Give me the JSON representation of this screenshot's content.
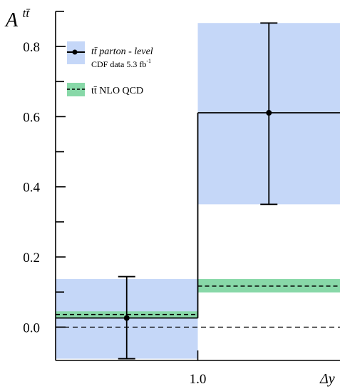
{
  "chart_data": {
    "type": "step",
    "ylabel": {
      "base": "A",
      "sup": "tt̄"
    },
    "xlabel": "Δy",
    "ylim": [
      -0.095,
      0.9
    ],
    "xlim": [
      0.0,
      2.0
    ],
    "x_ticks": [
      {
        "value": 1.0,
        "label": "1.0"
      }
    ],
    "y_ticks": [
      {
        "value": 0.8,
        "label": "0.8"
      },
      {
        "value": 0.6,
        "label": "0.6"
      },
      {
        "value": 0.4,
        "label": "0.4"
      },
      {
        "value": 0.2,
        "label": "0.2"
      },
      {
        "value": 0.0,
        "label": "0.0"
      }
    ],
    "y_minor_step": 0.1,
    "zero_line": true,
    "legend_position": "top-left",
    "series": [
      {
        "name": "tt̄ parton - level",
        "name_line2": "CDF data 5.3 fb-1",
        "name_line2_text": "CDF data 5.3 fb",
        "name_line2_sup": "-1",
        "style": "data",
        "band_color": "#c5d7f8",
        "line_color": "#000000",
        "bins": [
          {
            "x_low": 0.0,
            "x_high": 1.0,
            "x_center": 0.5,
            "y": 0.026,
            "err_low": 0.116,
            "err_high": 0.118,
            "band_low": -0.09,
            "band_high": 0.137
          },
          {
            "x_low": 1.0,
            "x_high": 2.0,
            "x_center": 1.5,
            "y": 0.611,
            "err_low": 0.261,
            "err_high": 0.256,
            "band_low": 0.35,
            "band_high": 0.867
          }
        ]
      },
      {
        "name": "tt̄ NLO QCD",
        "style": "theory",
        "band_color": "#88d8a8",
        "line_color": "#000000",
        "bins": [
          {
            "x_low": 0.0,
            "x_high": 1.0,
            "y": 0.036,
            "band_low": 0.025,
            "band_high": 0.045
          },
          {
            "x_low": 1.0,
            "x_high": 2.0,
            "y": 0.117,
            "band_low": 0.099,
            "band_high": 0.137
          }
        ]
      }
    ]
  }
}
